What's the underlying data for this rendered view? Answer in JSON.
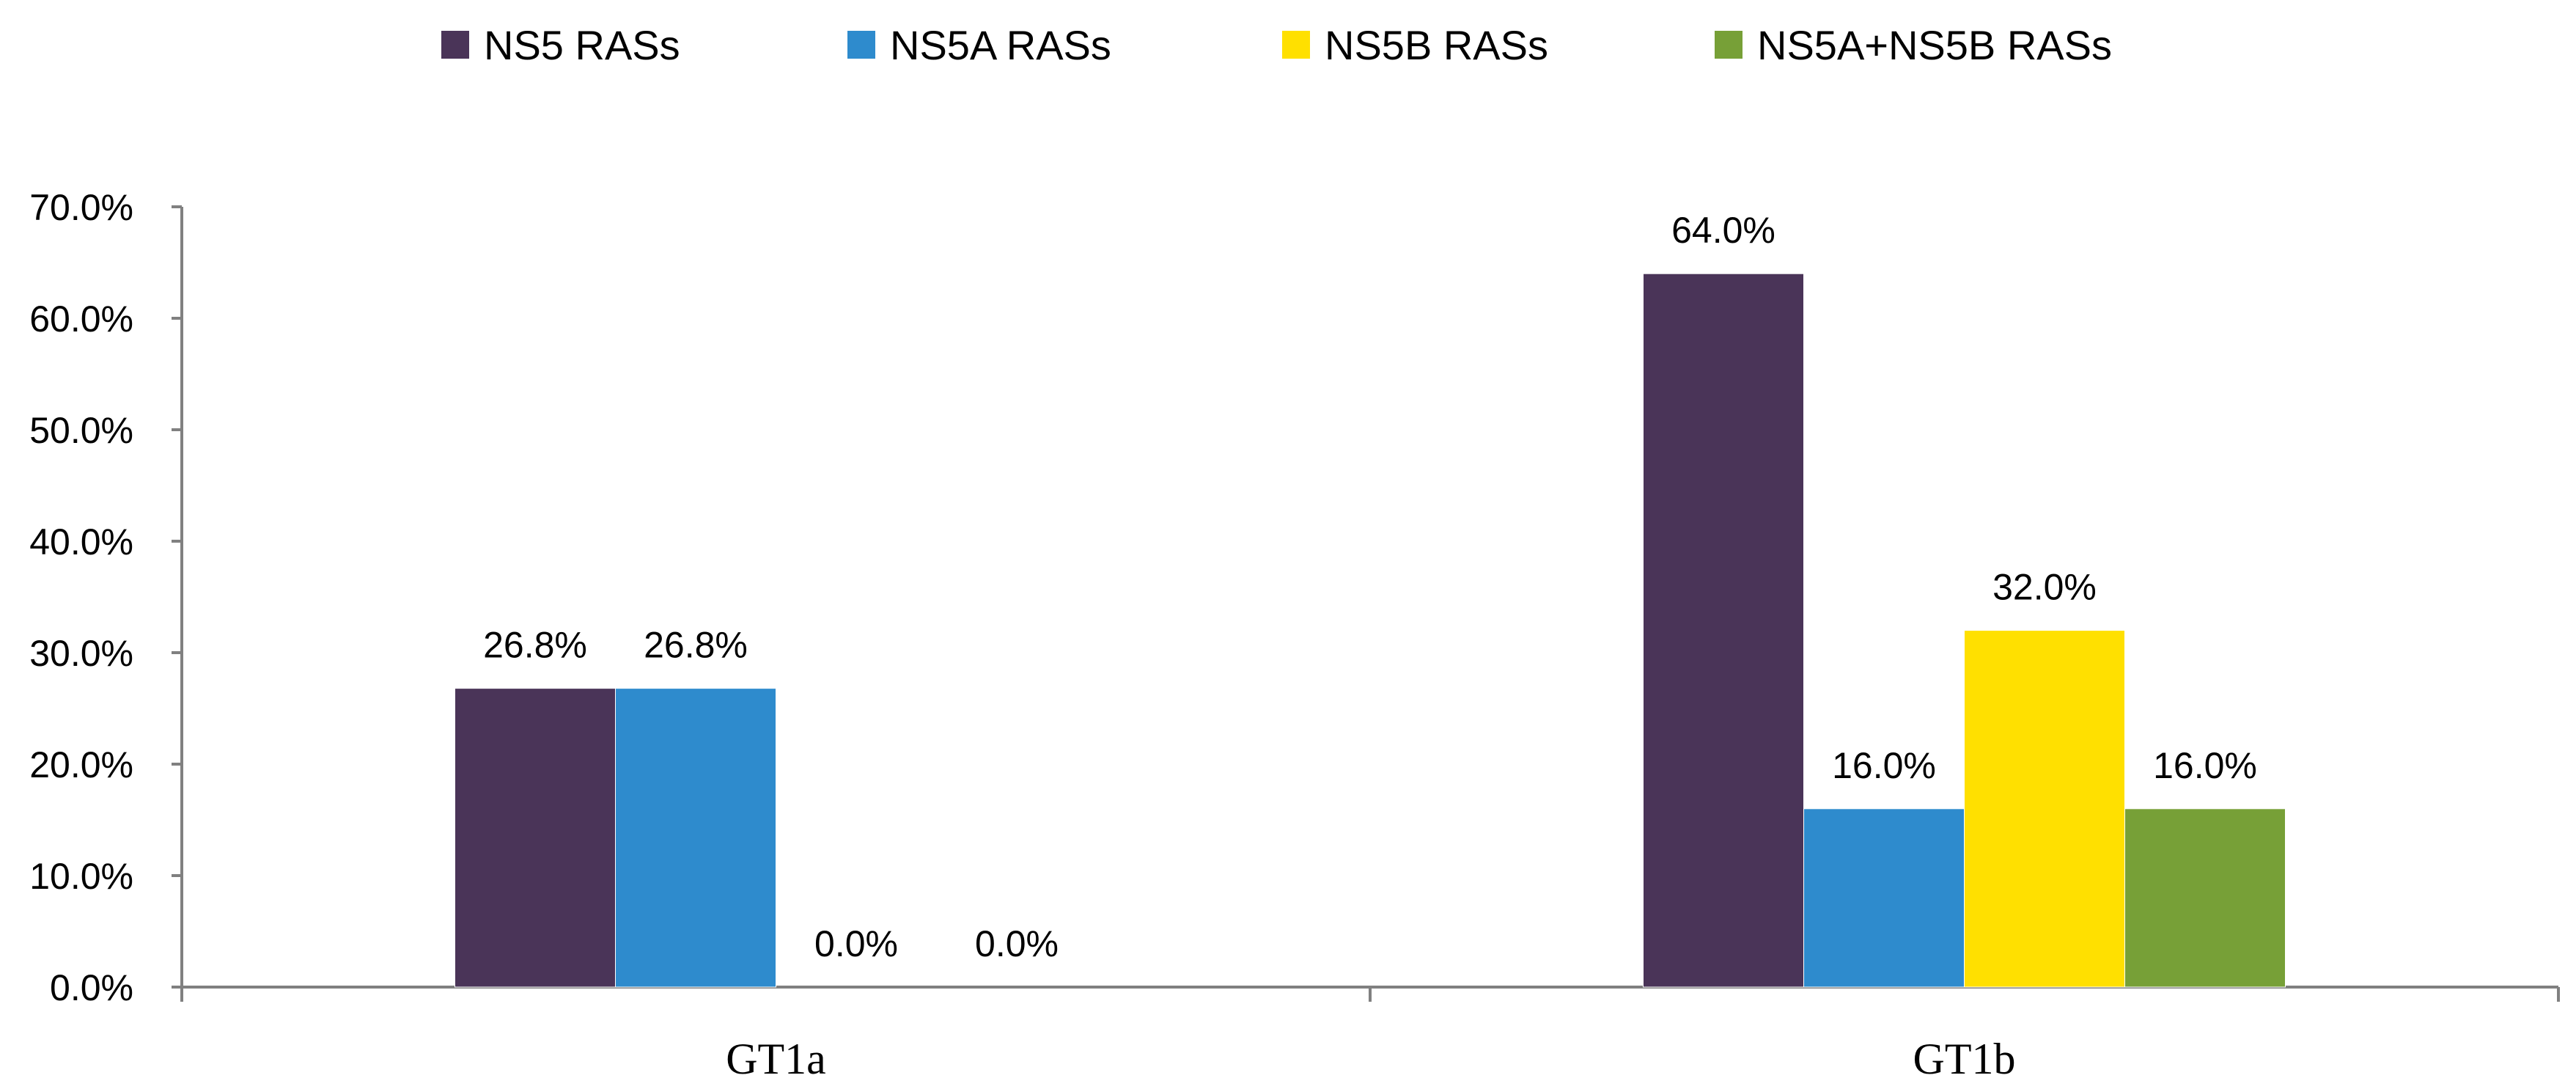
{
  "chart_data": {
    "type": "bar",
    "title": "",
    "xlabel": "",
    "ylabel": "",
    "categories": [
      "GT1a",
      "GT1b"
    ],
    "series": [
      {
        "name": "NS5 RASs",
        "color": "#4a3458",
        "values": [
          26.8,
          64.0
        ],
        "labels": [
          "26.8%",
          "64.0%"
        ]
      },
      {
        "name": "NS5A RASs",
        "color": "#2e8bcd",
        "values": [
          26.8,
          16.0
        ],
        "labels": [
          "26.8%",
          "16.0%"
        ]
      },
      {
        "name": "NS5B RASs",
        "color": "#ffe000",
        "values": [
          0.0,
          32.0
        ],
        "labels": [
          "0.0%",
          "32.0%"
        ]
      },
      {
        "name": "NS5A+NS5B RASs",
        "color": "#77a037",
        "values": [
          0.0,
          16.0
        ],
        "labels": [
          "0.0%",
          "16.0%"
        ]
      }
    ],
    "ylim": [
      0,
      70
    ],
    "yticks": [
      0,
      10,
      20,
      30,
      40,
      50,
      60,
      70
    ],
    "ytick_labels": [
      "0.0%",
      "10.0%",
      "20.0%",
      "30.0%",
      "40.0%",
      "50.0%",
      "60.0%",
      "70.0%"
    ],
    "grid": false,
    "legend_position": "top-center"
  }
}
